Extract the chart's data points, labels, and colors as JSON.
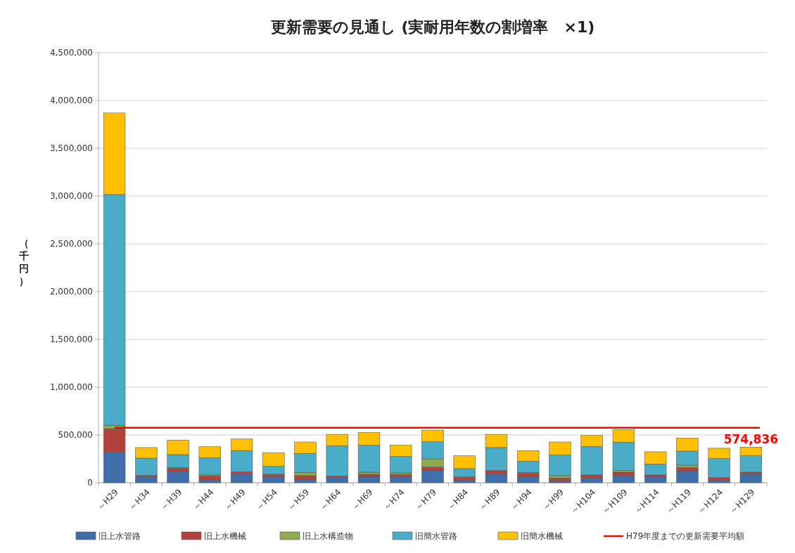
{
  "chart_data": {
    "type": "bar",
    "stacked": true,
    "title": "更新需要の見通し (実耐用年数の割増率　×1)",
    "ylabel": "（千円）",
    "categories": [
      "～H29",
      "～H34",
      "～H39",
      "～H44",
      "～H49",
      "～H54",
      "～H59",
      "～H64",
      "～H69",
      "～H74",
      "～H79",
      "～H84",
      "～H89",
      "～H94",
      "～H99",
      "～H104",
      "～H109",
      "～H114",
      "～H119",
      "～H124",
      "～H129"
    ],
    "series": [
      {
        "name": "旧上水管路",
        "color": "#3f6fa8",
        "values": [
          319000,
          61000,
          118000,
          29000,
          93000,
          61000,
          32000,
          54000,
          66000,
          61000,
          127000,
          25000,
          91000,
          61000,
          20000,
          49000,
          74000,
          61000,
          123000,
          25000,
          93000
        ]
      },
      {
        "name": "旧上水機械",
        "color": "#b5413c",
        "values": [
          245000,
          15000,
          34000,
          44000,
          20000,
          22000,
          42000,
          17000,
          22000,
          25000,
          37000,
          29000,
          37000,
          37000,
          29000,
          32000,
          37000,
          20000,
          37000,
          29000,
          17000
        ]
      },
      {
        "name": "旧上水構造物",
        "color": "#8bab4c",
        "values": [
          37000,
          null,
          7000,
          10000,
          0,
          7000,
          34000,
          0,
          22000,
          17000,
          86000,
          7000,
          0,
          7000,
          25000,
          0,
          17000,
          0,
          24000,
          null,
          0
        ]
      },
      {
        "name": "旧簡水管路",
        "color": "#4aacc6",
        "values": [
          2415000,
          181000,
          135000,
          179000,
          223000,
          82000,
          198000,
          316000,
          282000,
          172000,
          179000,
          86000,
          240000,
          120000,
          215000,
          299000,
          296000,
          115000,
          147000,
          199000,
          172000
        ]
      },
      {
        "name": "旧簡水機械",
        "color": "#ffc000",
        "values": [
          853000,
          111000,
          152000,
          115000,
          122000,
          142000,
          120000,
          120000,
          133000,
          117000,
          122000,
          135000,
          139000,
          111000,
          137000,
          115000,
          132000,
          128000,
          135000,
          108000,
          91000
        ]
      }
    ],
    "ylim": [
      0,
      4500000
    ],
    "yticks": [
      {
        "value": 0,
        "label": "0"
      },
      {
        "value": 500000,
        "label": "500,000"
      },
      {
        "value": 1000000,
        "label": "1,000,000"
      },
      {
        "value": 1500000,
        "label": "1,500,000"
      },
      {
        "value": 2000000,
        "label": "2,000,000"
      },
      {
        "value": 2500000,
        "label": "2,500,000"
      },
      {
        "value": 3000000,
        "label": "3,000,000"
      },
      {
        "value": 3500000,
        "label": "3,500,000"
      },
      {
        "value": 4000000,
        "label": "4,000,000"
      },
      {
        "value": 4500000,
        "label": "4,500,000"
      }
    ],
    "grid": "y",
    "legend": "bottom",
    "ref_lines": [
      {
        "axis": "y",
        "value": 574836,
        "label": "H79年度までの更新需要平均額",
        "color": "#ff0000"
      }
    ],
    "annotations": [
      {
        "text": "574,836",
        "x": "～H129",
        "y": 574836
      }
    ]
  }
}
